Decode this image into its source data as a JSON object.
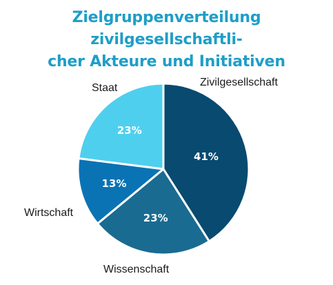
{
  "title_lines": [
    "Zielgruppenverteilung zivilgesellschaftli-",
    "cher Akteure und Initiativen"
  ],
  "colors": {
    "title": "#1e9ec8",
    "slice_border": "#ffffff"
  },
  "chart_data": {
    "type": "pie",
    "title": "Zielgruppenverteilung zivilgesellschaftlicher Akteure und Initiativen",
    "start_angle_deg": 0,
    "direction": "clockwise",
    "slices": [
      {
        "label": "Zivilgesellschaft",
        "value": 41,
        "display": "41%",
        "color": "#084a70"
      },
      {
        "label": "Wissenschaft",
        "value": 23,
        "display": "23%",
        "color": "#1a6b91"
      },
      {
        "label": "Wirtschaft",
        "value": 13,
        "display": "13%",
        "color": "#0a73b4"
      },
      {
        "label": "Staat",
        "value": 23,
        "display": "23%",
        "color": "#4fcfee"
      }
    ]
  }
}
